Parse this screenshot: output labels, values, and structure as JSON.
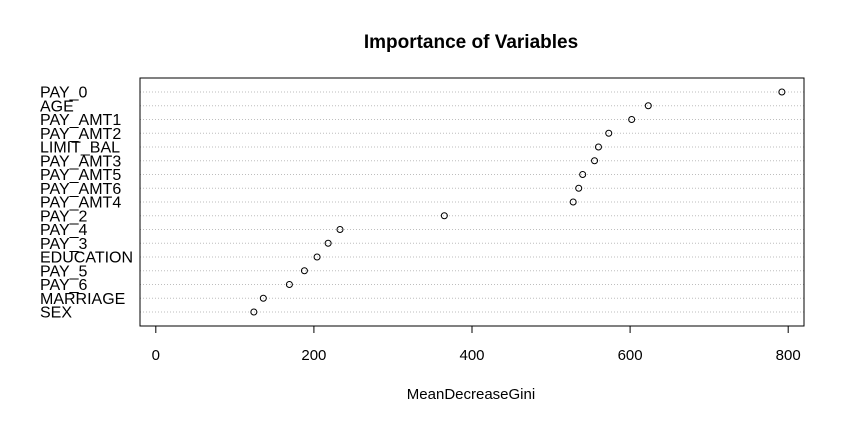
{
  "chart_data": {
    "type": "scatter",
    "title": "Importance of Variables",
    "xlabel": "MeanDecreaseGini",
    "ylabel": "",
    "xlim": [
      -20,
      820
    ],
    "x_ticks": [
      0,
      200,
      400,
      600,
      800
    ],
    "grid": "horizontal-dotted",
    "categories": [
      "PAY_0",
      "AGE",
      "PAY_AMT1",
      "PAY_AMT2",
      "LIMIT_BAL",
      "PAY_AMT3",
      "PAY_AMT5",
      "PAY_AMT6",
      "PAY_AMT4",
      "PAY_2",
      "PAY_4",
      "PAY_3",
      "EDUCATION",
      "PAY_5",
      "PAY_6",
      "MARRIAGE",
      "SEX"
    ],
    "values": [
      792,
      623,
      602,
      573,
      560,
      555,
      540,
      535,
      528,
      365,
      233,
      218,
      204,
      188,
      169,
      136,
      124
    ],
    "marker_color": "#000000",
    "grid_color": "#bebebe"
  }
}
